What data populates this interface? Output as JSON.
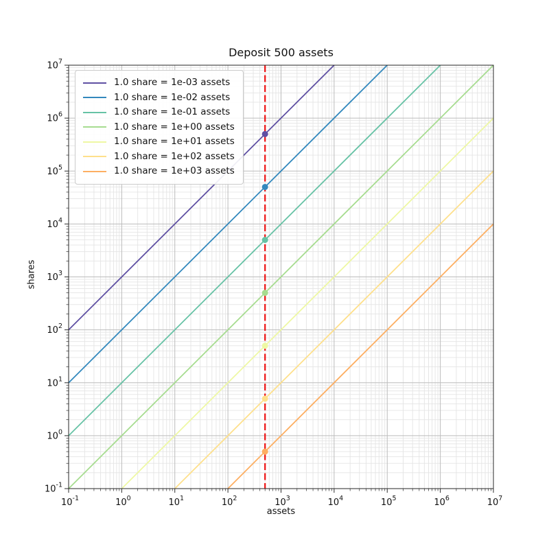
{
  "figure": {
    "title": "Deposit 500 assets",
    "xlabel": "assets",
    "ylabel": "shares"
  },
  "chart_data": {
    "type": "line",
    "title": "Deposit 500 assets",
    "xlabel": "assets",
    "ylabel": "shares",
    "x_scale": "log10",
    "y_scale": "log10",
    "xlim": [
      0.1,
      10000000
    ],
    "ylim": [
      0.1,
      10000000
    ],
    "x_tick_exponents": [
      -1,
      0,
      1,
      2,
      3,
      4,
      5,
      6,
      7
    ],
    "y_tick_exponents": [
      -1,
      0,
      1,
      2,
      3,
      4,
      5,
      6,
      7
    ],
    "grid": {
      "which": "both",
      "major_color": "#bbbbbb",
      "minor_color": "#e4e4e4"
    },
    "legend": {
      "position": "upper left"
    },
    "deposit_line": {
      "x": 500,
      "color": "#ee1111",
      "style": "dashed"
    },
    "series": [
      {
        "label": "1.0 share = 1e-03 assets",
        "assets_per_share": 0.001,
        "color": "#5e4fa2",
        "point": {
          "assets": 500,
          "shares": 500000
        }
      },
      {
        "label": "1.0 share = 1e-02 assets",
        "assets_per_share": 0.01,
        "color": "#3288bd",
        "point": {
          "assets": 500,
          "shares": 50000
        }
      },
      {
        "label": "1.0 share = 1e-01 assets",
        "assets_per_share": 0.1,
        "color": "#66c2a5",
        "point": {
          "assets": 500,
          "shares": 5000
        }
      },
      {
        "label": "1.0 share = 1e+00 assets",
        "assets_per_share": 1,
        "color": "#a6dc8f",
        "point": {
          "assets": 500,
          "shares": 500
        }
      },
      {
        "label": "1.0 share = 1e+01 assets",
        "assets_per_share": 10,
        "color": "#eef8a3",
        "point": {
          "assets": 500,
          "shares": 50
        }
      },
      {
        "label": "1.0 share = 1e+02 assets",
        "assets_per_share": 100,
        "color": "#fee08b",
        "point": {
          "assets": 500,
          "shares": 5
        }
      },
      {
        "label": "1.0 share = 1e+03 assets",
        "assets_per_share": 1000,
        "color": "#fdae61",
        "point": {
          "assets": 500,
          "shares": 0.5
        }
      }
    ]
  }
}
